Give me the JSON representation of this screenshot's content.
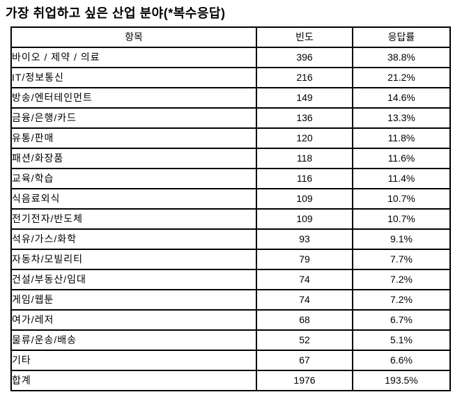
{
  "title": "가장 취업하고 싶은 산업 분야(*복수응답)",
  "table": {
    "headers": [
      "항목",
      "빈도",
      "응답률"
    ],
    "rows": [
      {
        "label": "바이오 / 제약 / 의료",
        "count": "396",
        "rate": "38.8%"
      },
      {
        "label": "IT/정보통신",
        "count": "216",
        "rate": "21.2%"
      },
      {
        "label": "방송/엔터테인먼트",
        "count": "149",
        "rate": "14.6%"
      },
      {
        "label": "금융/은행/카드",
        "count": "136",
        "rate": "13.3%"
      },
      {
        "label": "유통/판매",
        "count": "120",
        "rate": "11.8%"
      },
      {
        "label": "패션/화장품",
        "count": "118",
        "rate": "11.6%"
      },
      {
        "label": "교육/학습",
        "count": "116",
        "rate": "11.4%"
      },
      {
        "label": "식음료외식",
        "count": "109",
        "rate": "10.7%"
      },
      {
        "label": "전기전자/반도체",
        "count": "109",
        "rate": "10.7%"
      },
      {
        "label": "석유/가스/화학",
        "count": "93",
        "rate": "9.1%"
      },
      {
        "label": "자동차/모빌리티",
        "count": "79",
        "rate": "7.7%"
      },
      {
        "label": "건설/부동산/임대",
        "count": "74",
        "rate": "7.2%"
      },
      {
        "label": "게임/웹툰",
        "count": "74",
        "rate": "7.2%"
      },
      {
        "label": "여가/레저",
        "count": "68",
        "rate": "6.7%"
      },
      {
        "label": "물류/운송/배송",
        "count": "52",
        "rate": "5.1%"
      },
      {
        "label": "기타",
        "count": "67",
        "rate": "6.6%"
      },
      {
        "label": "합계",
        "count": "1976",
        "rate": "193.5%"
      }
    ]
  },
  "chart_data": {
    "type": "table",
    "title": "가장 취업하고 싶은 산업 분야(*복수응답)",
    "columns": [
      "항목",
      "빈도",
      "응답률"
    ],
    "categories": [
      "바이오 / 제약 / 의료",
      "IT/정보통신",
      "방송/엔터테인먼트",
      "금융/은행/카드",
      "유통/판매",
      "패션/화장품",
      "교육/학습",
      "식음료외식",
      "전기전자/반도체",
      "석유/가스/화학",
      "자동차/모빌리티",
      "건설/부동산/임대",
      "게임/웹툰",
      "여가/레저",
      "물류/운송/배송",
      "기타"
    ],
    "series": [
      {
        "name": "빈도",
        "values": [
          396,
          216,
          149,
          136,
          120,
          118,
          116,
          109,
          109,
          93,
          79,
          74,
          74,
          68,
          52,
          67
        ]
      },
      {
        "name": "응답률(%)",
        "values": [
          38.8,
          21.2,
          14.6,
          13.3,
          11.8,
          11.6,
          11.4,
          10.7,
          10.7,
          9.1,
          7.7,
          7.2,
          7.2,
          6.7,
          5.1,
          6.6
        ]
      }
    ],
    "total": {
      "label": "합계",
      "count": 1976,
      "rate_percent": 193.5
    }
  },
  "colors": {
    "text": "#000000",
    "border": "#000000",
    "background": "#ffffff"
  }
}
